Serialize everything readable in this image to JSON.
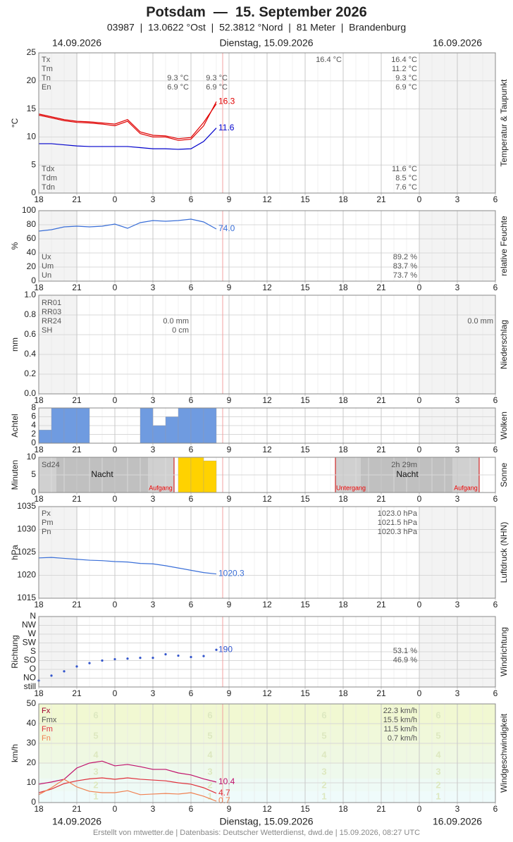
{
  "header": {
    "title": "Potsdam  —  15. September 2026",
    "subtitle": "03987  |  13.0622 °Ost  |  52.3812 °Nord  |  81 Meter  |  Brandenburg"
  },
  "dates": [
    "14.09.2026",
    "Dienstag, 15.09.2026",
    "16.09.2026"
  ],
  "footer": "Erstellt von mtwetter.de | Datenbasis: Deutscher Wetterdienst, dwd.de | 15.09.2026, 08:27 UTC",
  "x_axis": {
    "xlim": [
      18,
      54
    ],
    "xticks": [
      {
        "value": 18,
        "label": "18"
      },
      {
        "value": 21,
        "label": "21"
      },
      {
        "value": 24,
        "label": "0"
      },
      {
        "value": 27,
        "label": "3"
      },
      {
        "value": 30,
        "label": "6"
      },
      {
        "value": 33,
        "label": "9"
      },
      {
        "value": 36,
        "label": "12"
      },
      {
        "value": 39,
        "label": "15"
      },
      {
        "value": 42,
        "label": "18"
      },
      {
        "value": 45,
        "label": "21"
      },
      {
        "value": 48,
        "label": "0"
      },
      {
        "value": 51,
        "label": "3"
      },
      {
        "value": 54,
        "label": "6"
      }
    ]
  },
  "chart_data": [
    {
      "type": "line",
      "y_label": "°C",
      "side_label": "Temperatur & Taupunkt",
      "ylim": [
        0,
        25
      ],
      "yticks": [
        0,
        5,
        10,
        15,
        20,
        25
      ],
      "series": [
        {
          "color": "#e00000",
          "x": [
            18,
            19,
            20,
            21,
            22,
            23,
            24,
            25,
            26,
            27,
            28,
            29,
            30,
            31,
            32
          ],
          "values": [
            14.1,
            13.6,
            13.1,
            12.8,
            12.7,
            12.5,
            12.3,
            13.1,
            10.9,
            10.3,
            10.2,
            9.7,
            9.9,
            12.6,
            15.9
          ]
        },
        {
          "color": "#e00000",
          "x": [
            18,
            19,
            20,
            21,
            22,
            23,
            24,
            25,
            26,
            27,
            28,
            29,
            30,
            31,
            32
          ],
          "values": [
            13.9,
            13.4,
            12.9,
            12.6,
            12.5,
            12.3,
            12.0,
            12.8,
            10.6,
            10.0,
            10.0,
            9.4,
            9.6,
            12.0,
            16.3
          ],
          "value_labels": [
            null,
            null,
            null,
            null,
            null,
            null,
            null,
            null,
            null,
            null,
            null,
            null,
            null,
            null,
            "16.3"
          ]
        },
        {
          "color": "#0000cc",
          "x": [
            18,
            19,
            20,
            21,
            22,
            23,
            24,
            25,
            26,
            27,
            28,
            29,
            30,
            31,
            32
          ],
          "values": [
            8.8,
            8.8,
            8.6,
            8.4,
            8.3,
            8.3,
            8.3,
            8.3,
            8.1,
            7.9,
            7.9,
            7.8,
            7.9,
            9.2,
            11.6
          ],
          "value_labels": [
            null,
            null,
            null,
            null,
            null,
            null,
            null,
            null,
            null,
            null,
            null,
            null,
            null,
            null,
            "11.6"
          ]
        }
      ],
      "stats": [
        {
          "rows": [
            {
              "label": "Tx",
              "cells": [
                null,
                null,
                "16.4 °C",
                "16.4 °C"
              ]
            },
            {
              "label": "Tm",
              "cells": [
                null,
                null,
                null,
                "11.2 °C"
              ]
            },
            {
              "label": "Tn",
              "cells": [
                "9.3 °C",
                "9.3 °C",
                null,
                "9.3 °C"
              ]
            },
            {
              "label": "En",
              "cells": [
                "6.9 °C",
                "6.9 °C",
                null,
                "6.9 °C"
              ]
            }
          ]
        },
        {
          "rows": [
            {
              "label": "Tdx",
              "cells": [
                "11.6 °C"
              ]
            },
            {
              "label": "Tdm",
              "cells": [
                "8.5 °C"
              ]
            },
            {
              "label": "Tdn",
              "cells": [
                "7.6 °C"
              ]
            }
          ]
        }
      ]
    },
    {
      "type": "line",
      "y_label": "%",
      "side_label": "relative Feuchte",
      "ylim": [
        0,
        100
      ],
      "yticks": [
        0,
        20,
        40,
        60,
        80,
        100
      ],
      "series": [
        {
          "color": "#3a6fd8",
          "x": [
            18,
            19,
            20,
            21,
            22,
            23,
            24,
            25,
            26,
            27,
            28,
            29,
            30,
            31,
            32
          ],
          "values": [
            71,
            73,
            77,
            78,
            77,
            78,
            81,
            75,
            83,
            86,
            85,
            86,
            88,
            84,
            74
          ],
          "value_labels": [
            null,
            null,
            null,
            null,
            null,
            null,
            null,
            null,
            null,
            null,
            null,
            null,
            null,
            null,
            "74.0"
          ]
        }
      ],
      "stats": [
        {
          "rows": [
            {
              "label": "Ux",
              "cells": [
                "89.2 %"
              ]
            },
            {
              "label": "Um",
              "cells": [
                "83.7 %"
              ]
            },
            {
              "label": "Un",
              "cells": [
                "73.7 %"
              ]
            }
          ]
        }
      ]
    },
    {
      "type": "bar",
      "y_label": "mm",
      "side_label": "Niederschlag",
      "ylim": [
        0,
        1
      ],
      "yticks": [
        {
          "value": 0,
          "label": "0.0"
        },
        {
          "value": 0.2,
          "label": "0.2"
        },
        {
          "value": 0.4,
          "label": "0.4"
        },
        {
          "value": 0.6,
          "label": "0.6"
        },
        {
          "value": 0.8,
          "label": "0.8"
        },
        {
          "value": 1,
          "label": "1.0"
        }
      ],
      "stats": [
        {
          "rows": [
            {
              "label": "RR01",
              "cells": [
                null,
                null
              ]
            },
            {
              "label": "RR03",
              "cells": [
                null,
                null
              ]
            },
            {
              "label": "RR24",
              "cells": [
                "0.0 mm",
                "0.0 mm"
              ]
            },
            {
              "label": "SH",
              "cells": [
                "0 cm",
                null
              ]
            }
          ]
        }
      ]
    },
    {
      "type": "bar",
      "y_label": "Achtel",
      "side_label": "Wolken",
      "ylim": [
        0,
        8
      ],
      "yticks": [
        0,
        2,
        4,
        6,
        8
      ],
      "series": [
        {
          "color": "#6f9be0",
          "x": [
            18,
            19,
            20,
            21,
            22,
            23,
            24,
            25,
            26,
            27,
            28,
            29,
            30,
            31
          ],
          "values": [
            3,
            8,
            8,
            8,
            0,
            0,
            0,
            0,
            8,
            4,
            6,
            8,
            8,
            8
          ]
        }
      ]
    },
    {
      "type": "bar",
      "y_label": "Minuten",
      "side_label": "Sonne",
      "ylim": [
        0,
        10
      ],
      "yticks": [
        0,
        5,
        10
      ],
      "series": [
        {
          "color": "#ffd200",
          "x": [
            29,
            30,
            31
          ],
          "values": [
            10,
            10,
            9
          ]
        }
      ],
      "stats": [
        {
          "rows": [
            {
              "label": "Sd24",
              "cells": [
                "2h 29m"
              ]
            }
          ]
        }
      ],
      "notes": [
        "Nacht",
        "Aufgang",
        "Untergang",
        "Nacht",
        "Aufgang"
      ]
    },
    {
      "type": "line",
      "y_label": "hPa",
      "side_label": "Luftdruck (NHN)",
      "ylim": [
        1015,
        1035
      ],
      "yticks": [
        1015,
        1020,
        1025,
        1030,
        1035
      ],
      "series": [
        {
          "color": "#3a6fd8",
          "x": [
            18,
            19,
            20,
            21,
            22,
            23,
            24,
            25,
            26,
            27,
            28,
            29,
            30,
            31,
            32
          ],
          "values": [
            1023.8,
            1023.9,
            1023.7,
            1023.5,
            1023.3,
            1023.2,
            1023.0,
            1022.9,
            1022.6,
            1022.5,
            1022.1,
            1021.6,
            1021.1,
            1020.6,
            1020.3
          ],
          "value_labels": [
            null,
            null,
            null,
            null,
            null,
            null,
            null,
            null,
            null,
            null,
            null,
            null,
            null,
            null,
            "1020.3"
          ]
        }
      ],
      "stats": [
        {
          "rows": [
            {
              "label": "Px",
              "cells": [
                "1023.0 hPa"
              ]
            },
            {
              "label": "Pm",
              "cells": [
                "1021.5 hPa"
              ]
            },
            {
              "label": "Pn",
              "cells": [
                "1020.3 hPa"
              ]
            }
          ]
        }
      ]
    },
    {
      "type": "scatter",
      "y_label": "Richtung",
      "side_label": "Windrichtung",
      "ylim": [
        0,
        360
      ],
      "yticks": [
        {
          "value": 0,
          "label": "still"
        },
        {
          "value": 45,
          "label": "NO"
        },
        {
          "value": 90,
          "label": "O"
        },
        {
          "value": 135,
          "label": "SO"
        },
        {
          "value": 180,
          "label": "S"
        },
        {
          "value": 225,
          "label": "SW"
        },
        {
          "value": 270,
          "label": "W"
        },
        {
          "value": 315,
          "label": "NW"
        },
        {
          "value": 360,
          "label": "N"
        }
      ],
      "series": [
        {
          "color": "#3355cc",
          "x": [
            18,
            19,
            20,
            21,
            22,
            23,
            24,
            25,
            26,
            27,
            28,
            29,
            30,
            31,
            32
          ],
          "values": [
            33,
            58,
            80,
            105,
            122,
            135,
            142,
            145,
            149,
            149,
            167,
            160,
            153,
            158,
            190
          ],
          "value_labels": [
            null,
            null,
            null,
            null,
            null,
            null,
            null,
            null,
            null,
            null,
            null,
            null,
            null,
            null,
            "190"
          ]
        }
      ],
      "stats": [
        {
          "rows": [
            {
              "cells": [
                "53.1 %"
              ]
            },
            {
              "cells": [
                "46.9 %"
              ]
            }
          ]
        }
      ]
    },
    {
      "type": "line",
      "y_label": "km/h",
      "side_label": "Windgeschwindigkeit",
      "ylim": [
        0,
        50
      ],
      "yticks": [
        0,
        10,
        20,
        30,
        40,
        50
      ],
      "beaufort": [
        1,
        2,
        3,
        4,
        5,
        6
      ],
      "series": [
        {
          "color": "#c0106a",
          "x": [
            18,
            19,
            20,
            21,
            22,
            23,
            24,
            25,
            26,
            27,
            28,
            29,
            30,
            31,
            32
          ],
          "values": [
            9.3,
            10.4,
            11.8,
            17.5,
            20,
            21,
            18.6,
            19.3,
            18.2,
            16.8,
            16.8,
            15,
            14,
            12,
            10.4
          ],
          "value_labels": [
            null,
            null,
            null,
            null,
            null,
            null,
            null,
            null,
            null,
            null,
            null,
            null,
            null,
            null,
            "10.4"
          ]
        },
        {
          "color": "#e0303a",
          "x": [
            18,
            19,
            20,
            21,
            22,
            23,
            24,
            25,
            26,
            27,
            28,
            29,
            30,
            31,
            32
          ],
          "values": [
            5,
            6.8,
            9.6,
            11,
            12,
            12.5,
            11.8,
            12.5,
            11.8,
            11.4,
            11,
            10,
            9.3,
            7.5,
            4.7
          ],
          "value_labels": [
            null,
            null,
            null,
            null,
            null,
            null,
            null,
            null,
            null,
            null,
            null,
            null,
            null,
            null,
            "4.7"
          ]
        },
        {
          "color": "#f08050",
          "x": [
            18,
            19,
            20,
            21,
            22,
            23,
            24,
            25,
            26,
            27,
            28,
            29,
            30,
            31,
            32
          ],
          "values": [
            4,
            7.5,
            11.8,
            7.9,
            5.7,
            5,
            5,
            6,
            4,
            4.3,
            4.6,
            4.3,
            5,
            3.2,
            0.7
          ],
          "value_labels": [
            null,
            null,
            null,
            null,
            null,
            null,
            null,
            null,
            null,
            null,
            null,
            null,
            null,
            null,
            "0.7"
          ]
        }
      ],
      "stats": [
        {
          "rows": [
            {
              "label": "Fx",
              "color": "#a00030",
              "cells": [
                "22.3 km/h"
              ]
            },
            {
              "label": "Fmx",
              "color": "#555555",
              "cells": [
                "15.5 km/h"
              ]
            },
            {
              "label": "Fm",
              "color": "#e0303a",
              "cells": [
                "11.5 km/h"
              ]
            },
            {
              "label": "Fn",
              "color": "#f08050",
              "cells": [
                "0.7 km/h"
              ]
            }
          ]
        }
      ]
    }
  ]
}
